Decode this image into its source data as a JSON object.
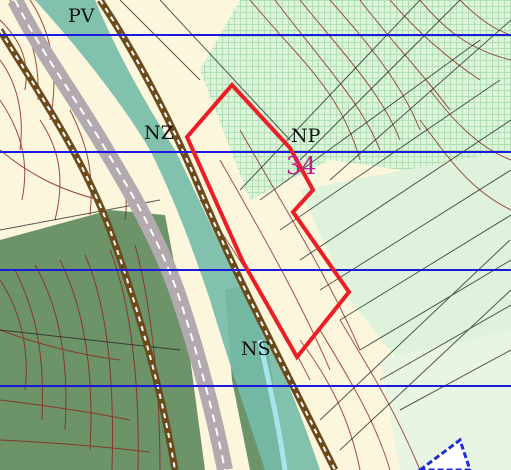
{
  "map": {
    "colors": {
      "background": "#fbf6dc",
      "forest_dark": "#6d9369",
      "forest_light": "#dff3dc",
      "hatch": "#aee0b4",
      "grid_line": "#1a1adc",
      "parcel_outline": "#ee1c24",
      "parcel_number": "#c0208a",
      "river": "#74bba9",
      "river_center": "#a6e4ee",
      "road": "#b2aaae",
      "path_brown": "#6b4a1c",
      "contour": "#8a2a22",
      "ridge_blue": "#1e2bd8"
    },
    "labels": {
      "pv": "PV",
      "nz": "NZ",
      "np": "NP",
      "ns": "NS",
      "parcel_number": "34"
    }
  }
}
